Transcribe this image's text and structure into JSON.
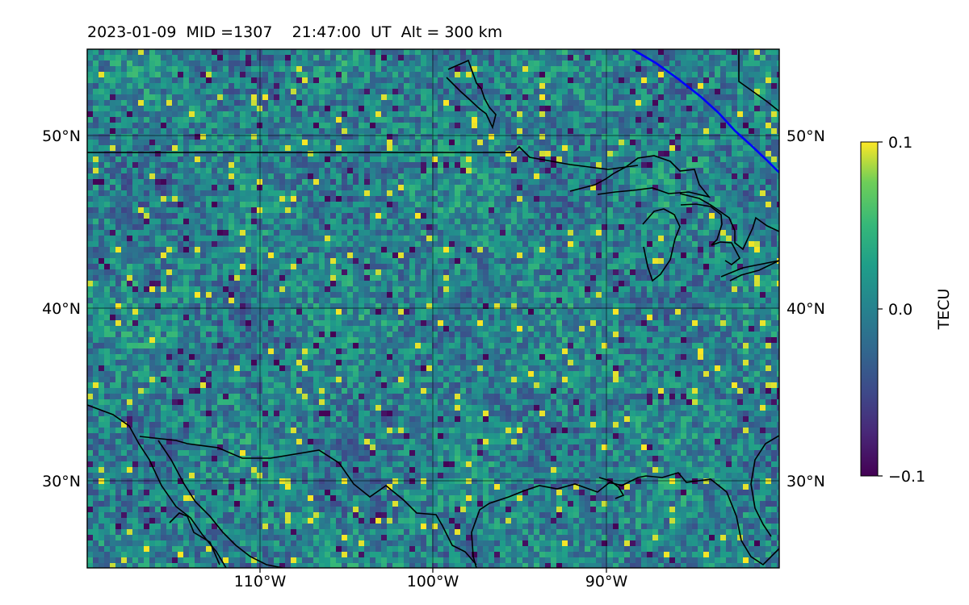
{
  "title": "2023-01-09  MID =1307    21:47:00  UT  Alt = 300 km",
  "map": {
    "lon_range": [
      -120,
      -80
    ],
    "lat_range": [
      25,
      55
    ],
    "gridlines_lon": [
      -110,
      -100,
      -90
    ],
    "gridlines_lat": [
      30,
      40,
      50
    ],
    "lon_tick_labels": [
      "110°W",
      "100°W",
      "90°W"
    ],
    "lat_tick_labels": [
      "50°N",
      "40°N",
      "30°N"
    ]
  },
  "colorbar": {
    "label": "TECU",
    "colormap": "viridis",
    "ticks": [
      "0.1",
      "0.0",
      "−0.1"
    ],
    "vmin": -0.1,
    "vmax": 0.1
  },
  "colors": {
    "terminator": "#0000ff",
    "coastline": "#000000"
  }
}
